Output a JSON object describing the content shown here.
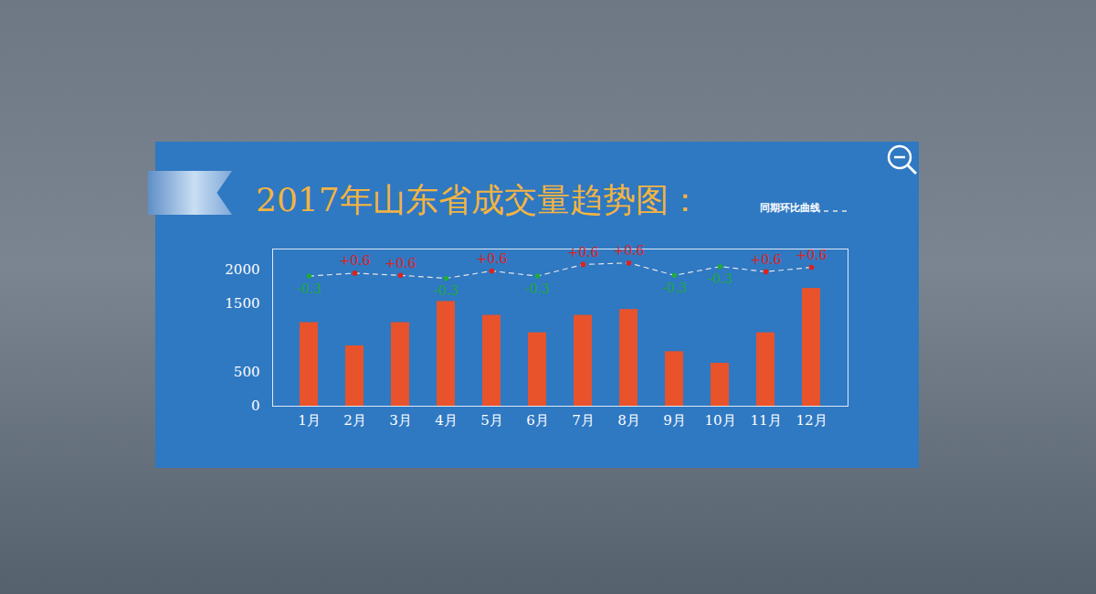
{
  "chart_data": {
    "type": "bar",
    "title": "2017年山东省成交量趋势图：",
    "categories": [
      "1月",
      "2月",
      "3月",
      "4月",
      "5月",
      "6月",
      "7月",
      "8月",
      "9月",
      "10月",
      "11月",
      "12月"
    ],
    "values": [
      1223,
      883,
      1223,
      1532,
      1330,
      1074,
      1330,
      1415,
      798,
      628,
      1074,
      1723
    ],
    "color": "#e8532b",
    "ylim": [
      0,
      2300
    ],
    "yticks": [
      0,
      500,
      1500,
      2000
    ],
    "legend": "top-right",
    "series": [
      {
        "name": "同期环比曲线",
        "type": "line",
        "line_style": "dashed",
        "marker": "circle",
        "color": "#e6e6e6",
        "values": [
          1904,
          1947,
          1915,
          1872,
          1979,
          1904,
          2074,
          2096,
          1915,
          2043,
          1968,
          2032
        ],
        "changes": [
          "-0.3",
          "+0.6",
          "+0.6",
          "-0.3",
          "+0.6",
          "-0.3",
          "+0.6",
          "+0.6",
          "-0.3",
          "-0.3",
          "+0.6",
          "+0.6"
        ],
        "colors": [
          "#1faa3c",
          "#e0201b",
          "#e0201b",
          "#1faa3c",
          "#e0201b",
          "#1faa3c",
          "#e0201b",
          "#e0201b",
          "#1faa3c",
          "#1faa3c",
          "#e0201b",
          "#e0201b"
        ]
      }
    ]
  }
}
